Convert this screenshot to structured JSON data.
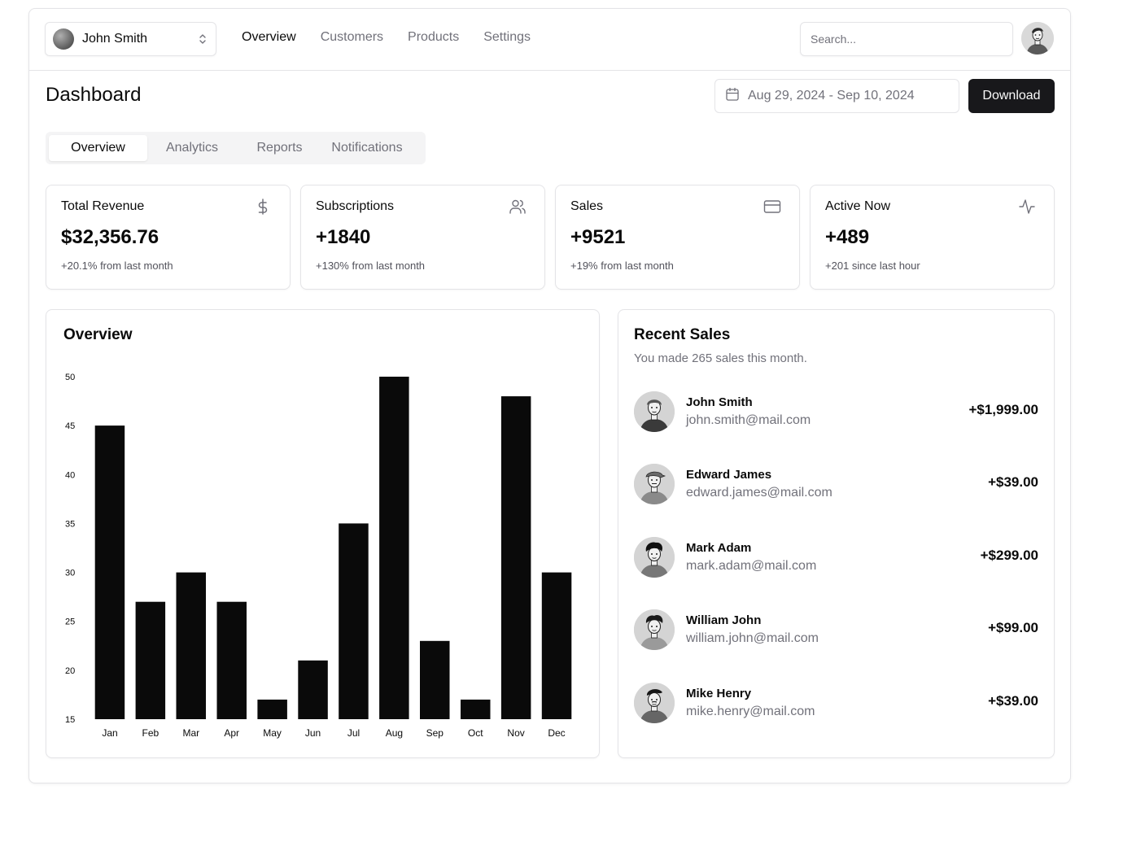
{
  "topnav": {
    "team_name": "John Smith",
    "links": [
      "Overview",
      "Customers",
      "Products",
      "Settings"
    ],
    "active_link": "Overview",
    "search_placeholder": "Search..."
  },
  "header": {
    "title": "Dashboard",
    "date_range": "Aug 29, 2024 - Sep 10, 2024",
    "download_label": "Download"
  },
  "tabs": [
    {
      "label": "Overview",
      "active": true
    },
    {
      "label": "Analytics",
      "active": false
    },
    {
      "label": "Reports",
      "active": false
    },
    {
      "label": "Notifications",
      "active": false
    }
  ],
  "stats": [
    {
      "title": "Total Revenue",
      "value": "$32,356.76",
      "sub": "+20.1% from last month",
      "icon": "dollar-icon"
    },
    {
      "title": "Subscriptions",
      "value": "+1840",
      "sub": "+130% from last month",
      "icon": "users-icon"
    },
    {
      "title": "Sales",
      "value": "+9521",
      "sub": "+19% from last month",
      "icon": "credit-card-icon"
    },
    {
      "title": "Active Now",
      "value": "+489",
      "sub": "+201 since last hour",
      "icon": "activity-icon"
    }
  ],
  "overview": {
    "title": "Overview"
  },
  "chart_data": {
    "type": "bar",
    "title": "Overview",
    "categories": [
      "Jan",
      "Feb",
      "Mar",
      "Apr",
      "May",
      "Jun",
      "Jul",
      "Aug",
      "Sep",
      "Oct",
      "Nov",
      "Dec"
    ],
    "values": [
      45,
      27,
      30,
      27,
      17,
      21,
      35,
      50,
      23,
      17,
      48,
      30
    ],
    "ylim": [
      15,
      50
    ],
    "yticks": [
      15,
      20,
      25,
      30,
      35,
      40,
      45,
      50
    ],
    "xlabel": "",
    "ylabel": "",
    "grid": false,
    "bar_color": "#0a0a0a"
  },
  "recent_sales": {
    "title": "Recent Sales",
    "subtitle": "You made 265 sales this month.",
    "items": [
      {
        "name": "John Smith",
        "email": "john.smith@mail.com",
        "amount": "+$1,999.00"
      },
      {
        "name": "Edward James",
        "email": "edward.james@mail.com",
        "amount": "+$39.00"
      },
      {
        "name": "Mark Adam",
        "email": "mark.adam@mail.com",
        "amount": "+$299.00"
      },
      {
        "name": "William John",
        "email": "william.john@mail.com",
        "amount": "+$99.00"
      },
      {
        "name": "Mike Henry",
        "email": "mike.henry@mail.com",
        "amount": "+$39.00"
      }
    ]
  }
}
